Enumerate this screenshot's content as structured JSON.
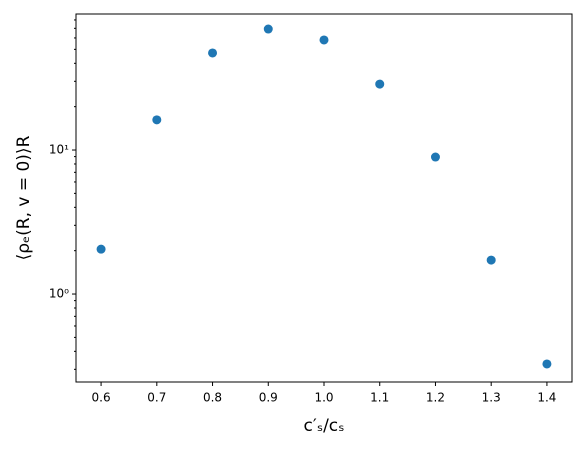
{
  "chart_data": {
    "type": "scatter",
    "x_label": "c′ₛ/cₛ",
    "y_label": "⟨ρₑ(R, v = 0)⟩R",
    "x": [
      0.6,
      0.7,
      0.8,
      0.9,
      1.0,
      1.1,
      1.2,
      1.3,
      1.4
    ],
    "values": [
      2.05,
      16.2,
      47.2,
      69.2,
      58.1,
      28.7,
      8.94,
      1.72,
      0.327
    ],
    "color": "#1f77b4",
    "xlim": [
      0.555,
      1.445
    ],
    "xticks": [
      0.6,
      0.7,
      0.8,
      0.9,
      {
        "value": 1,
        "label": "1.0"
      },
      1.1,
      1.2,
      1.3,
      1.4
    ],
    "ylim": [
      0.245,
      88
    ],
    "yticks": [
      {
        "value": 1,
        "label": "10⁰"
      },
      {
        "value": 10,
        "label": "10¹"
      }
    ],
    "yticks_minor": [
      0.3,
      0.4,
      0.5,
      0.6,
      0.7,
      0.8,
      0.9,
      2,
      3,
      4,
      5,
      6,
      7,
      8,
      9,
      20,
      30,
      40,
      50,
      60,
      70,
      80
    ],
    "log_y": true,
    "grid": false
  }
}
